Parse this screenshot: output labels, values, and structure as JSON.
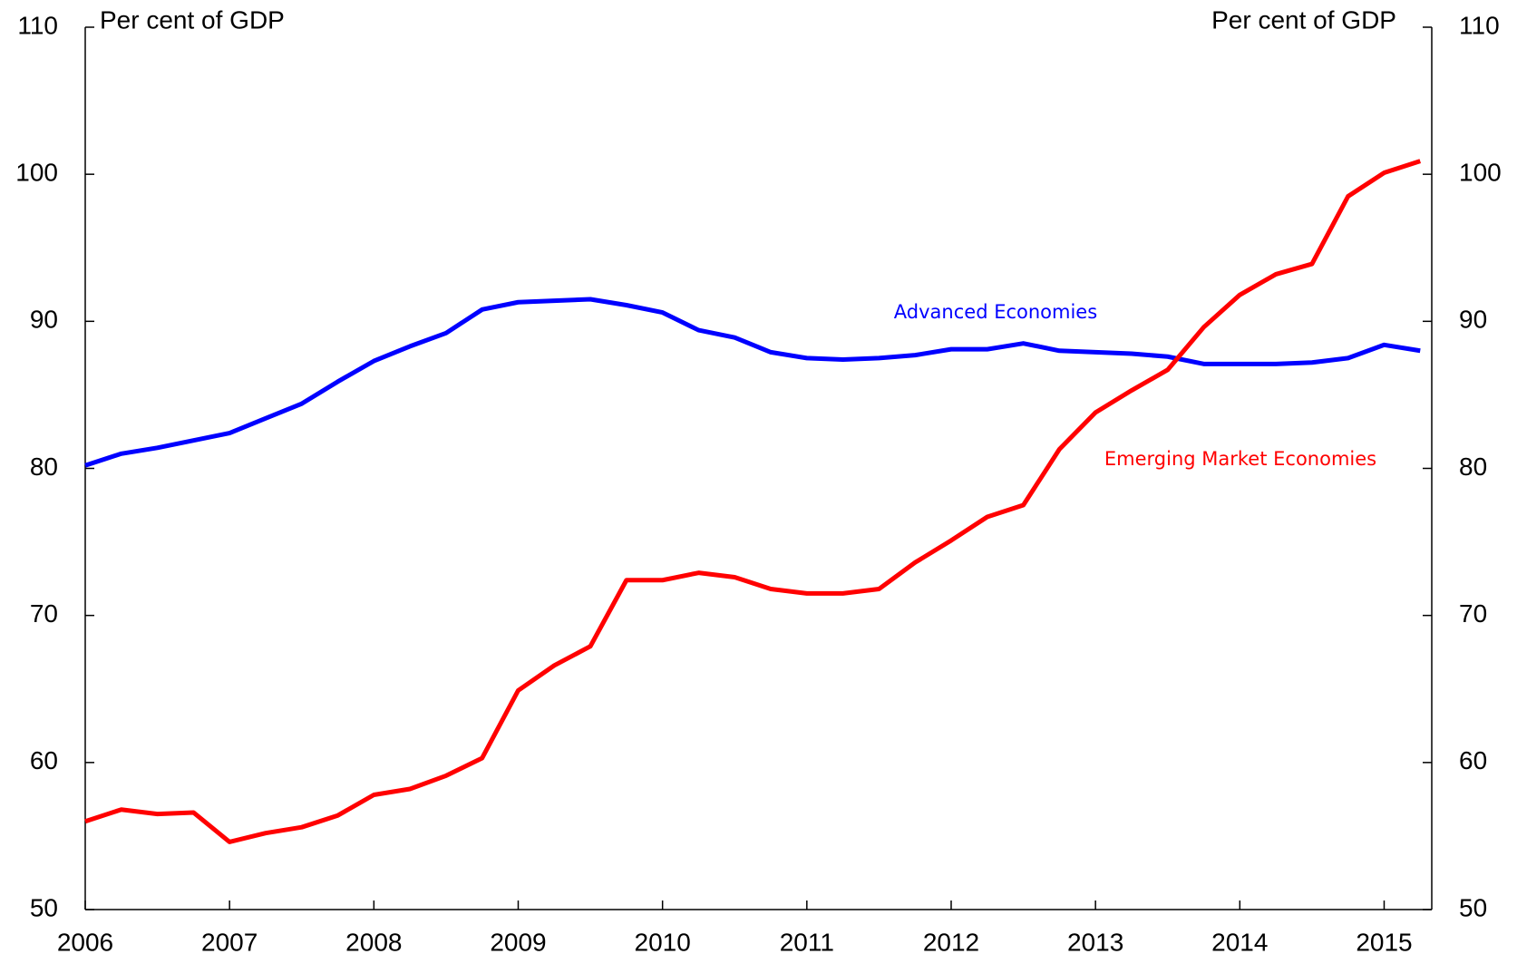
{
  "chart_data": {
    "type": "line",
    "ylabel": "Per cent of GDP",
    "y2label": "Per cent of GDP",
    "x": [
      2006,
      2006.25,
      2006.5,
      2006.75,
      2007,
      2007.25,
      2007.5,
      2007.75,
      2008,
      2008.25,
      2008.5,
      2008.75,
      2009,
      2009.25,
      2009.5,
      2009.75,
      2010,
      2010.25,
      2010.5,
      2010.75,
      2011,
      2011.25,
      2011.5,
      2011.75,
      2012,
      2012.25,
      2012.5,
      2012.75,
      2013,
      2013.25,
      2013.5,
      2013.75,
      2014,
      2014.25,
      2014.5,
      2014.75,
      2015,
      2015.25
    ],
    "series": [
      {
        "name": "Advanced Economies",
        "color": "#0000ff",
        "values": [
          80.2,
          81.0,
          81.4,
          81.9,
          82.4,
          83.4,
          84.4,
          85.9,
          87.3,
          88.3,
          89.2,
          90.8,
          91.3,
          91.4,
          91.5,
          91.1,
          90.6,
          89.4,
          88.9,
          87.9,
          87.5,
          87.4,
          87.5,
          87.7,
          88.1,
          88.1,
          88.5,
          88.0,
          87.9,
          87.8,
          87.6,
          87.1,
          87.1,
          87.1,
          87.2,
          87.5,
          88.4,
          88.0
        ]
      },
      {
        "name": "Emerging Market Economies",
        "color": "#ff0000",
        "values": [
          56.0,
          56.8,
          56.5,
          56.6,
          54.6,
          55.2,
          55.6,
          56.4,
          57.8,
          58.2,
          59.1,
          60.3,
          64.9,
          66.6,
          67.9,
          72.4,
          72.4,
          72.9,
          72.6,
          71.8,
          71.5,
          71.5,
          71.8,
          73.6,
          75.1,
          76.7,
          77.5,
          81.3,
          83.8,
          85.3,
          86.7,
          89.6,
          91.8,
          93.2,
          93.9,
          98.5,
          100.1,
          100.9
        ]
      }
    ],
    "xlim": [
      2006,
      2015.33
    ],
    "xticks": [
      2006,
      2007,
      2008,
      2009,
      2010,
      2011,
      2012,
      2013,
      2014,
      2015
    ],
    "ylim": [
      50,
      110
    ],
    "yticks": [
      50,
      60,
      70,
      80,
      90,
      100,
      110
    ],
    "y2lim": [
      50,
      110
    ],
    "y2ticks": [
      50,
      60,
      70,
      80,
      90,
      100,
      110
    ]
  }
}
